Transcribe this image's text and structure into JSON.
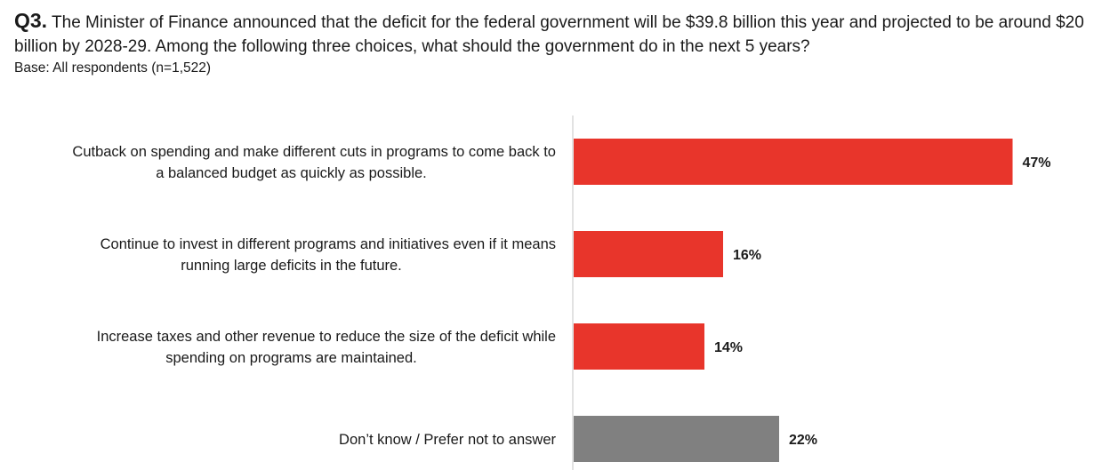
{
  "question": {
    "number": "Q3.",
    "text": "The Minister of Finance announced that the deficit for the federal government will be $39.8 billion this year and projected to be around $20 billion by 2028-29.  Among the following three choices, what should the government do in the next 5 years?",
    "base": "Base: All respondents (n=1,522)"
  },
  "colors": {
    "primary_bar": "#e8352b",
    "neutral_bar": "#808080",
    "axis": "#d9d9d9"
  },
  "chart_data": {
    "type": "bar",
    "orientation": "horizontal",
    "categories": [
      [
        "Cutback on spending and make different cuts in programs to come back to",
        "a balanced budget as quickly as possible."
      ],
      [
        "Continue to invest in different programs and initiatives even if it means",
        "running large deficits in the future."
      ],
      [
        "Increase taxes and other revenue to reduce the size of the deficit while",
        "spending on programs are maintained."
      ],
      [
        "Don’t know / Prefer not to answer"
      ]
    ],
    "values": [
      47,
      16,
      14,
      22
    ],
    "value_labels": [
      "47%",
      "16%",
      "14%",
      "22%"
    ],
    "bar_colors": [
      "#e8352b",
      "#e8352b",
      "#e8352b",
      "#808080"
    ],
    "xlim": [
      0,
      60
    ],
    "grid": false,
    "legend": "none"
  }
}
